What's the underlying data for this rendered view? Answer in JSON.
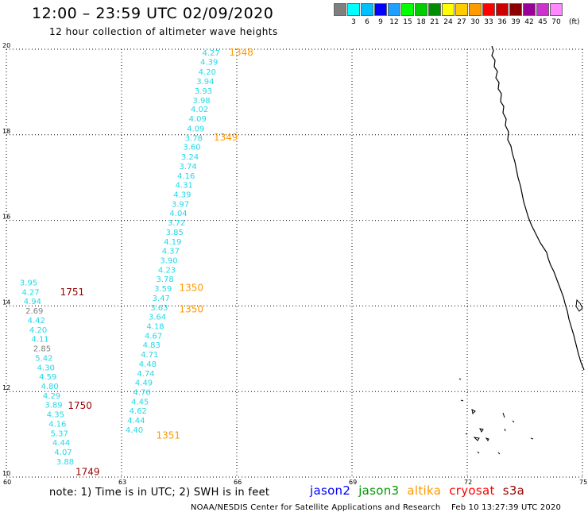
{
  "header": {
    "title": "12:00 – 23:59 UTC 02/09/2020",
    "subtitle": "12 hour collection of altimeter wave heights"
  },
  "color_scale": {
    "unit": "(ft)",
    "bins": [
      {
        "label": "",
        "color": "#7f7f7f"
      },
      {
        "label": "3",
        "color": "#00ffff"
      },
      {
        "label": "6",
        "color": "#00bfff"
      },
      {
        "label": "9",
        "color": "#0000ff"
      },
      {
        "label": "12",
        "color": "#1fa0ff"
      },
      {
        "label": "15",
        "color": "#00ff00"
      },
      {
        "label": "18",
        "color": "#00cc00"
      },
      {
        "label": "21",
        "color": "#008c00"
      },
      {
        "label": "24",
        "color": "#ffff00"
      },
      {
        "label": "27",
        "color": "#ffcc00"
      },
      {
        "label": "30",
        "color": "#ff9900"
      },
      {
        "label": "33",
        "color": "#ff0000"
      },
      {
        "label": "36",
        "color": "#cc0000"
      },
      {
        "label": "39",
        "color": "#8b0000"
      },
      {
        "label": "42",
        "color": "#990099"
      },
      {
        "label": "45",
        "color": "#cc33cc"
      },
      {
        "label": "70",
        "color": "#ff88ff"
      }
    ]
  },
  "note": "note: 1) Time is in UTC; 2) SWH is in feet",
  "satellites": [
    {
      "name": "jason2",
      "color": "#0000ff"
    },
    {
      "name": "jason3",
      "color": "#009900"
    },
    {
      "name": "altika",
      "color": "#ff9900"
    },
    {
      "name": "cryosat",
      "color": "#ff0000"
    },
    {
      "name": "s3a",
      "color": "#990000"
    }
  ],
  "footer": "NOAA/NESDIS Center for Satellite Applications and Research    Feb 10 13:27:39 UTC 2020",
  "chart_data": {
    "type": "scatter",
    "x_ticks": [
      "60",
      "63",
      "66",
      "69",
      "72",
      "75"
    ],
    "y_ticks": [
      "10",
      "12",
      "14",
      "16",
      "18",
      "20"
    ],
    "xlim": [
      60,
      75
    ],
    "ylim": [
      10,
      20
    ],
    "grid": true,
    "series": [
      {
        "name": "altika",
        "color": "#ff9900",
        "time_labels": [
          {
            "x": 65.8,
            "y": 19.85,
            "text": "1348"
          },
          {
            "x": 65.4,
            "y": 17.87,
            "text": "1349"
          },
          {
            "x": 64.5,
            "y": 14.35,
            "text": "1350"
          },
          {
            "x": 64.5,
            "y": 13.85,
            "text": "1350"
          },
          {
            "x": 63.9,
            "y": 10.9,
            "text": "1351"
          }
        ],
        "points": [
          {
            "x": 65.1,
            "y": 19.85,
            "text": "4.27"
          },
          {
            "x": 65.05,
            "y": 19.64,
            "text": "4.39"
          },
          {
            "x": 65.0,
            "y": 19.41,
            "text": "4.20"
          },
          {
            "x": 64.95,
            "y": 19.18,
            "text": "3.94"
          },
          {
            "x": 64.9,
            "y": 18.96,
            "text": "3.93"
          },
          {
            "x": 64.85,
            "y": 18.74,
            "text": "3.98"
          },
          {
            "x": 64.8,
            "y": 18.53,
            "text": "4.02"
          },
          {
            "x": 64.75,
            "y": 18.31,
            "text": "4.09"
          },
          {
            "x": 64.7,
            "y": 18.08,
            "text": "4.09"
          },
          {
            "x": 64.65,
            "y": 17.86,
            "text": "3.78"
          },
          {
            "x": 64.6,
            "y": 17.65,
            "text": "3.60"
          },
          {
            "x": 64.55,
            "y": 17.42,
            "text": "3.24"
          },
          {
            "x": 64.5,
            "y": 17.2,
            "text": "3.74"
          },
          {
            "x": 64.45,
            "y": 16.98,
            "text": "4.16"
          },
          {
            "x": 64.4,
            "y": 16.76,
            "text": "4.31"
          },
          {
            "x": 64.35,
            "y": 16.54,
            "text": "4.39"
          },
          {
            "x": 64.3,
            "y": 16.32,
            "text": "3.97"
          },
          {
            "x": 64.25,
            "y": 16.1,
            "text": "4.04"
          },
          {
            "x": 64.2,
            "y": 15.88,
            "text": "3.72"
          },
          {
            "x": 64.15,
            "y": 15.66,
            "text": "3.85"
          },
          {
            "x": 64.1,
            "y": 15.44,
            "text": "4.19"
          },
          {
            "x": 64.05,
            "y": 15.22,
            "text": "4.37"
          },
          {
            "x": 64.0,
            "y": 15.0,
            "text": "3.90"
          },
          {
            "x": 63.95,
            "y": 14.78,
            "text": "4.23"
          },
          {
            "x": 63.9,
            "y": 14.56,
            "text": "3.78"
          },
          {
            "x": 63.85,
            "y": 14.34,
            "text": "3.59"
          },
          {
            "x": 63.8,
            "y": 14.12,
            "text": "3.47"
          },
          {
            "x": 63.75,
            "y": 13.9,
            "text": "3.63"
          },
          {
            "x": 63.7,
            "y": 13.68,
            "text": "3.64"
          },
          {
            "x": 63.65,
            "y": 13.46,
            "text": "4.18"
          },
          {
            "x": 63.6,
            "y": 13.24,
            "text": "4.67"
          },
          {
            "x": 63.55,
            "y": 13.02,
            "text": "4.83"
          },
          {
            "x": 63.5,
            "y": 12.8,
            "text": "4.71"
          },
          {
            "x": 63.45,
            "y": 12.58,
            "text": "4.48"
          },
          {
            "x": 63.4,
            "y": 12.36,
            "text": "4.74"
          },
          {
            "x": 63.35,
            "y": 12.14,
            "text": "4.49"
          },
          {
            "x": 63.3,
            "y": 11.92,
            "text": "4.76"
          },
          {
            "x": 63.25,
            "y": 11.7,
            "text": "4.45"
          },
          {
            "x": 63.2,
            "y": 11.48,
            "text": "4.62"
          },
          {
            "x": 63.15,
            "y": 11.26,
            "text": "4.44"
          },
          {
            "x": 63.1,
            "y": 11.04,
            "text": "4.40"
          }
        ]
      },
      {
        "name": "s3a",
        "color": "#990000",
        "time_labels": [
          {
            "x": 61.4,
            "y": 14.25,
            "text": "1751"
          },
          {
            "x": 61.6,
            "y": 11.6,
            "text": "1750"
          },
          {
            "x": 61.8,
            "y": 10.05,
            "text": "1749"
          }
        ],
        "points": [
          {
            "x": 60.35,
            "y": 14.48,
            "text": "3.95"
          },
          {
            "x": 60.4,
            "y": 14.26,
            "text": "4.27"
          },
          {
            "x": 60.45,
            "y": 14.04,
            "text": "4.94"
          },
          {
            "x": 60.5,
            "y": 13.82,
            "text": "2.69",
            "color": "#7f7f7f"
          },
          {
            "x": 60.55,
            "y": 13.6,
            "text": "4.42"
          },
          {
            "x": 60.6,
            "y": 13.38,
            "text": "4.20"
          },
          {
            "x": 60.65,
            "y": 13.16,
            "text": "4.11"
          },
          {
            "x": 60.7,
            "y": 12.94,
            "text": "2.85",
            "color": "#7f7f7f"
          },
          {
            "x": 60.75,
            "y": 12.72,
            "text": "5.42"
          },
          {
            "x": 60.8,
            "y": 12.5,
            "text": "4.30"
          },
          {
            "x": 60.85,
            "y": 12.28,
            "text": "4.59"
          },
          {
            "x": 60.9,
            "y": 12.06,
            "text": "4.80"
          },
          {
            "x": 60.95,
            "y": 11.84,
            "text": "4.29"
          },
          {
            "x": 61.0,
            "y": 11.62,
            "text": "3.89"
          },
          {
            "x": 61.05,
            "y": 11.4,
            "text": "4.35"
          },
          {
            "x": 61.1,
            "y": 11.18,
            "text": "4.16"
          },
          {
            "x": 61.15,
            "y": 10.96,
            "text": "5.37"
          },
          {
            "x": 61.2,
            "y": 10.74,
            "text": "4.44"
          },
          {
            "x": 61.25,
            "y": 10.52,
            "text": "4.07"
          },
          {
            "x": 61.3,
            "y": 10.3,
            "text": "3.88"
          }
        ]
      }
    ]
  }
}
